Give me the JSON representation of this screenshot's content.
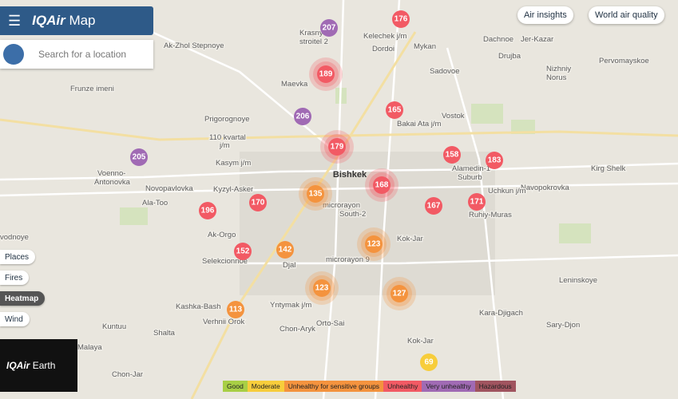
{
  "header": {
    "brand": "IQAir",
    "title": "Map",
    "search_placeholder": "Search for a location"
  },
  "top_buttons": [
    "Air insights",
    "World air quality"
  ],
  "side_buttons": [
    "Places",
    "Fires",
    "Heatmap",
    "Wind"
  ],
  "earth": {
    "brand": "IQAir",
    "label": "Earth"
  },
  "legend": [
    {
      "label": "Good",
      "color": "#a8cf45"
    },
    {
      "label": "Moderate",
      "color": "#f7cd3b"
    },
    {
      "label": "Unhealthy for sensitive groups",
      "color": "#f4933e"
    },
    {
      "label": "Unhealthy",
      "color": "#f25a64"
    },
    {
      "label": "Very unhealthy",
      "color": "#a06ab4"
    },
    {
      "label": "Hazardous",
      "color": "#a0545f"
    }
  ],
  "city": "Bishkek",
  "places": [
    "Ak-Zhol Stepnoye",
    "Krasny",
    "stroitel 2",
    "Kelechek j/m",
    "Dordoi",
    "Mykan",
    "Dachnoe",
    "Jer-Kazar",
    "Drujba",
    "Sadovoe",
    "Pervomayskoe",
    "Nizhniy",
    "Norus",
    "Maevka",
    "Frunze imeni",
    "Prigorognoye",
    "Vostok",
    "Bakai Ata j/m",
    "110 kvartal",
    "j/m",
    "Kasym j/m",
    "Voenno-",
    "Antonovka",
    "Novopavlovka",
    "Kyzyl-Asker",
    "Ala-Too",
    "Alamedin-1",
    "Suburb",
    "Kirg Shelk",
    "Navopokrovka",
    "Uchkun j/m",
    "Ruhiy-Muras",
    "microrayon",
    "South-2",
    "Ak-Orgo",
    "Kok-Jar",
    "Selekcionnoe",
    "Djal",
    "microrayon 9",
    "vodnoye",
    "Leninskoye",
    "Kashka-Bash",
    "Yntymak j/m",
    "Verhnii Orok",
    "Kara-Djigach",
    "Kuntuu",
    "Shalta",
    "Chon-Aryk",
    "Orto-Sai",
    "Sary-Djon",
    "Kok-Jar",
    "Chon-Jar",
    "Malaya"
  ],
  "markers": [
    {
      "value": 207,
      "color": "#a06ab4"
    },
    {
      "value": 176,
      "color": "#f25a64"
    },
    {
      "value": 189,
      "color": "#f25a64"
    },
    {
      "value": 206,
      "color": "#a06ab4"
    },
    {
      "value": 165,
      "color": "#f25a64"
    },
    {
      "value": 179,
      "color": "#f25a64"
    },
    {
      "value": 205,
      "color": "#a06ab4"
    },
    {
      "value": 158,
      "color": "#f25a64"
    },
    {
      "value": 183,
      "color": "#f25a64"
    },
    {
      "value": 135,
      "color": "#f4933e"
    },
    {
      "value": 168,
      "color": "#f25a64"
    },
    {
      "value": 171,
      "color": "#f25a64"
    },
    {
      "value": 167,
      "color": "#f25a64"
    },
    {
      "value": 196,
      "color": "#f25a64"
    },
    {
      "value": 170,
      "color": "#f25a64"
    },
    {
      "value": 142,
      "color": "#f4933e"
    },
    {
      "value": 152,
      "color": "#f25a64"
    },
    {
      "value": 123,
      "color": "#f4933e"
    },
    {
      "value": 123,
      "color": "#f4933e"
    },
    {
      "value": 127,
      "color": "#f4933e"
    },
    {
      "value": 113,
      "color": "#f4933e"
    },
    {
      "value": 69,
      "color": "#f7cd3b"
    }
  ]
}
